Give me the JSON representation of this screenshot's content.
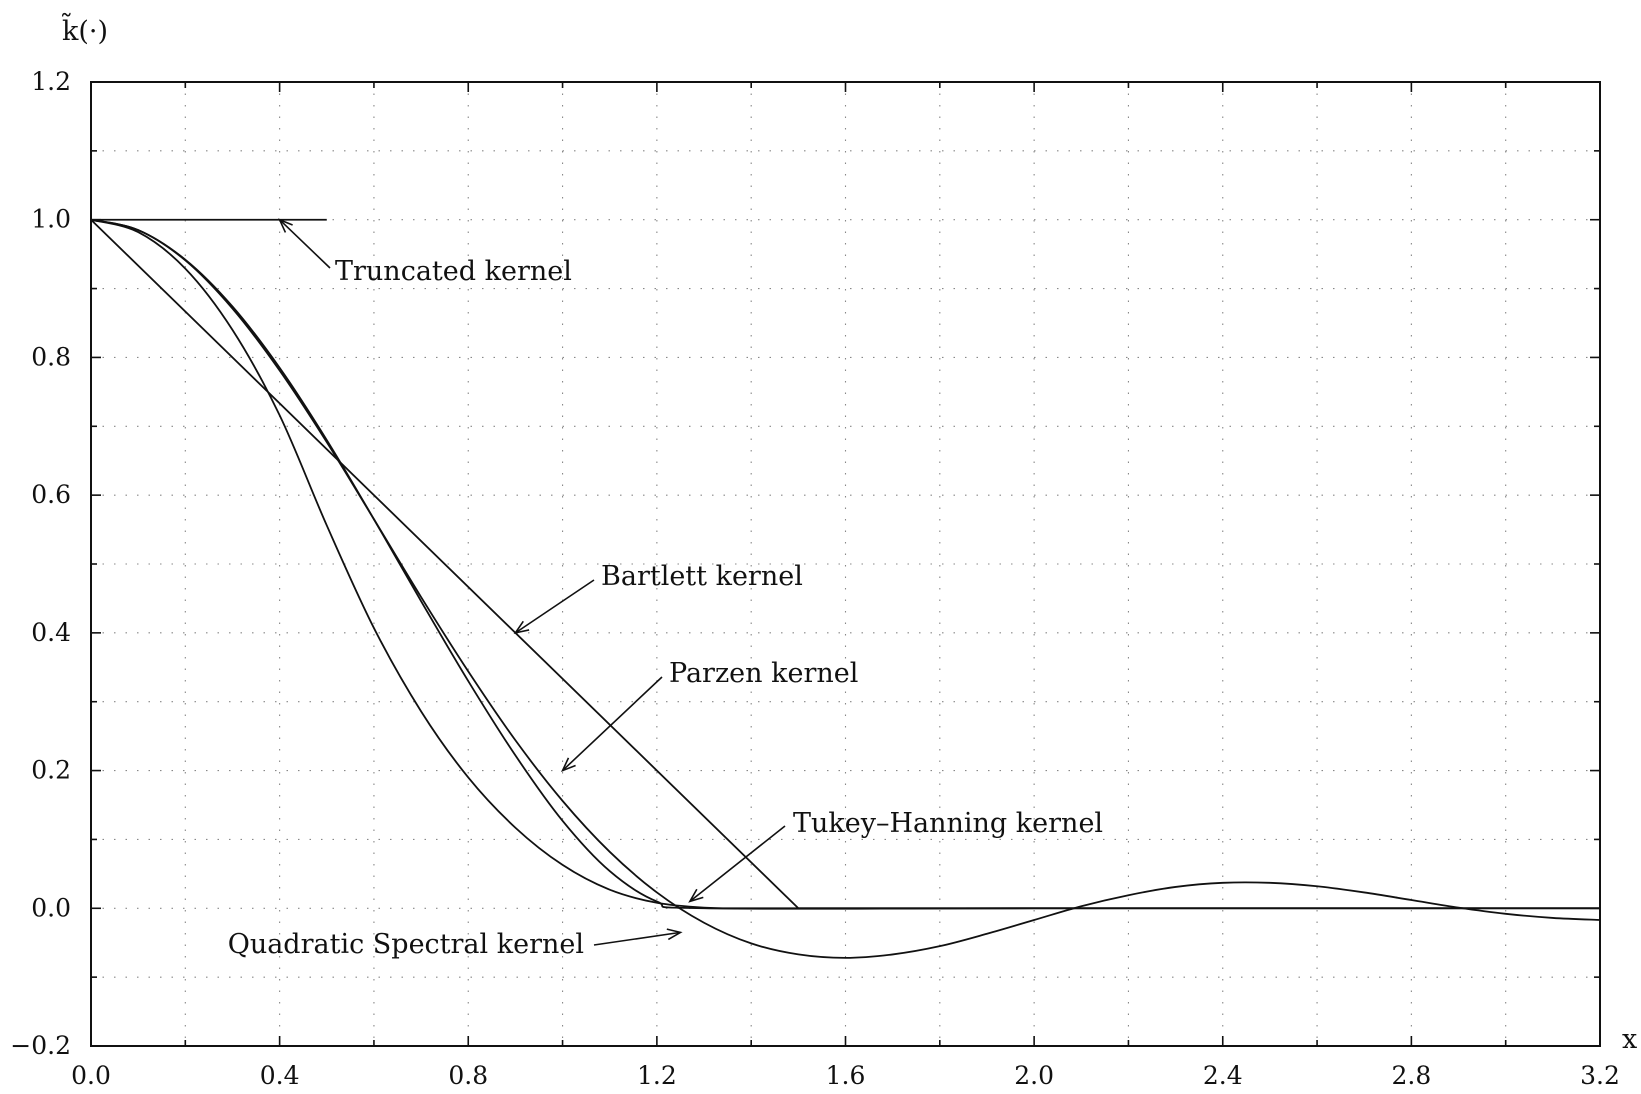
{
  "chart_data": {
    "type": "line",
    "ylabel": "k̃(·)",
    "xlabel": "x",
    "xlim": [
      0.0,
      3.2
    ],
    "ylim": [
      -0.2,
      1.2
    ],
    "grid": true,
    "x_ticks": [
      "0.0",
      "0.4",
      "0.8",
      "1.2",
      "1.6",
      "2.0",
      "2.4",
      "2.8",
      "3.2"
    ],
    "y_ticks": [
      "−0.2",
      "0.0",
      "0.2",
      "0.4",
      "0.6",
      "0.8",
      "1.0",
      "1.2"
    ],
    "x_tick_values": [
      0.0,
      0.4,
      0.8,
      1.2,
      1.6,
      2.0,
      2.4,
      2.8,
      3.2
    ],
    "y_tick_values": [
      -0.2,
      0.0,
      0.2,
      0.4,
      0.6,
      0.8,
      1.0,
      1.2
    ],
    "series": [
      {
        "name": "Truncated kernel",
        "x": [
          0.0,
          0.5
        ],
        "y": [
          1.0,
          1.0
        ]
      },
      {
        "name": "Bartlett kernel",
        "x": [
          0.0,
          1.5,
          3.2
        ],
        "y": [
          1.0,
          0.0,
          0.0
        ]
      },
      {
        "name": "Parzen kernel",
        "x": [
          0.0,
          0.1,
          0.2,
          0.3,
          0.4,
          0.5,
          0.6,
          0.7,
          0.8,
          0.9,
          1.0,
          1.1,
          1.2,
          1.3,
          1.4,
          1.5,
          1.6,
          2.0,
          3.2
        ],
        "y": [
          1.0,
          0.982,
          0.929,
          0.84,
          0.716,
          0.556,
          0.407,
          0.286,
          0.19,
          0.117,
          0.063,
          0.027,
          0.008,
          0.001,
          0.0,
          0.0,
          0.0,
          0.0,
          0.0
        ]
      },
      {
        "name": "Tukey–Hanning kernel",
        "x": [
          0.0,
          0.1,
          0.2,
          0.3,
          0.4,
          0.5,
          0.6,
          0.7,
          0.8,
          0.9,
          1.0,
          1.1,
          1.2,
          1.3,
          2.0,
          3.2
        ],
        "y": [
          1.0,
          0.985,
          0.942,
          0.874,
          0.785,
          0.68,
          0.565,
          0.446,
          0.33,
          0.222,
          0.127,
          0.054,
          0.01,
          0.0,
          0.0,
          0.0
        ]
      },
      {
        "name": "Quadratic Spectral kernel",
        "x": [
          0.0,
          0.1,
          0.2,
          0.3,
          0.4,
          0.5,
          0.6,
          0.7,
          0.8,
          0.9,
          1.0,
          1.1,
          1.2,
          1.3,
          1.4,
          1.5,
          1.6,
          1.7,
          1.8,
          1.9,
          2.0,
          2.1,
          2.2,
          2.3,
          2.4,
          2.5,
          2.6,
          2.7,
          2.8,
          2.9,
          3.0,
          3.1,
          3.2
        ],
        "y": [
          1.0,
          0.985,
          0.941,
          0.871,
          0.781,
          0.677,
          0.565,
          0.452,
          0.344,
          0.244,
          0.156,
          0.082,
          0.023,
          -0.021,
          -0.051,
          -0.067,
          -0.072,
          -0.067,
          -0.055,
          -0.037,
          -0.017,
          0.003,
          0.019,
          0.031,
          0.037,
          0.037,
          0.032,
          0.023,
          0.012,
          0.001,
          -0.008,
          -0.014,
          -0.017
        ]
      }
    ],
    "annotations": [
      {
        "text": "Truncated kernel",
        "series": "Truncated kernel",
        "point_x": 0.4,
        "point_y": 1.0
      },
      {
        "text": "Bartlett kernel",
        "series": "Bartlett kernel",
        "point_x": 0.9,
        "point_y": 0.4
      },
      {
        "text": "Parzen kernel",
        "series": "Parzen kernel",
        "point_x": 1.0,
        "point_y": 0.2
      },
      {
        "text": "Tukey–Hanning kernel",
        "series": "Tukey–Hanning kernel",
        "point_x": 1.27,
        "point_y": 0.01
      },
      {
        "text": "Quadratic Spectral kernel",
        "series": "Quadratic Spectral kernel",
        "point_x": 1.25,
        "point_y": -0.035
      }
    ]
  }
}
